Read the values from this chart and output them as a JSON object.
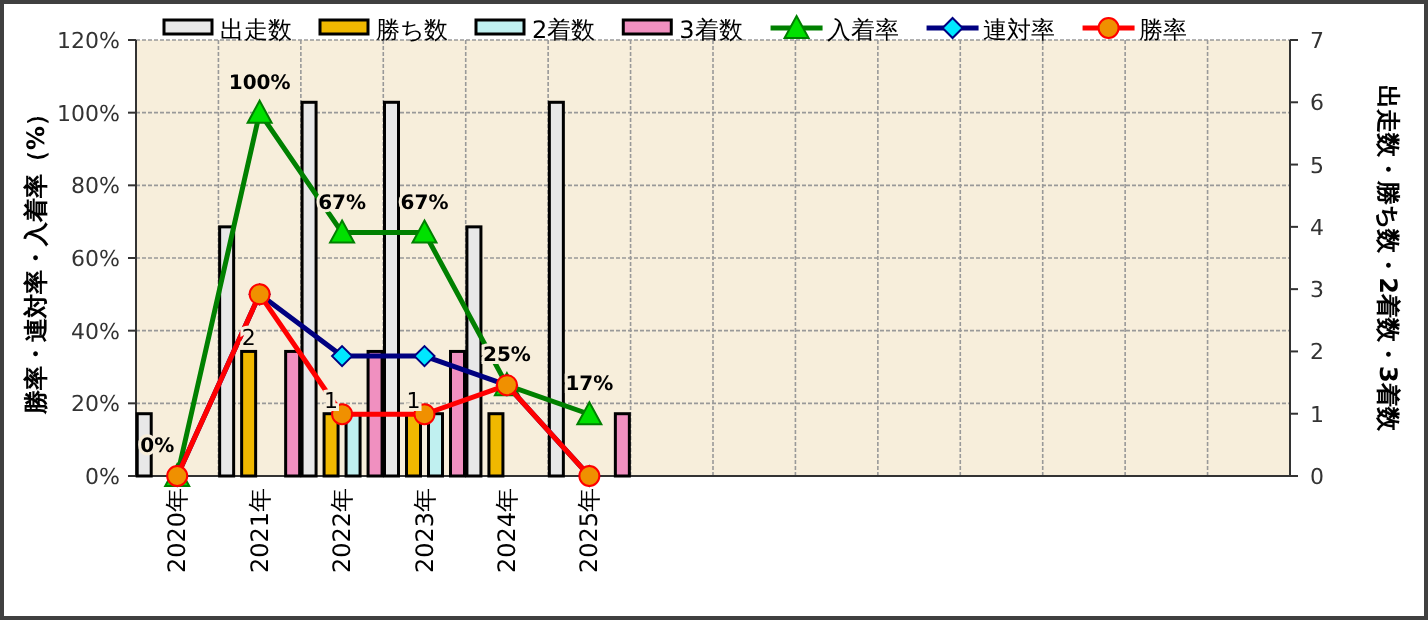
{
  "chart_data": {
    "type": "bar",
    "ylabel": "勝率・連対率・入着率（%）",
    "y2label": "出走数・勝ち数・2着数・3着数",
    "categories": [
      "2020年",
      "2021年",
      "2022年",
      "2023年",
      "2024年",
      "2025年",
      null,
      null,
      null,
      null,
      null,
      null,
      null,
      null
    ],
    "series": [
      {
        "name": "出走数",
        "axis": "y2",
        "color": "#e8e8e8",
        "values": [
          1,
          4,
          6,
          6,
          4,
          6,
          null,
          null,
          null,
          null,
          null,
          null,
          null,
          null
        ]
      },
      {
        "name": "勝ち数",
        "axis": "y2",
        "color": "#f0b800",
        "values": [
          0,
          2,
          1,
          1,
          1,
          0,
          null,
          null,
          null,
          null,
          null,
          null,
          null,
          null
        ],
        "value_labels": [
          null,
          "2",
          "1",
          "1",
          null,
          null,
          null,
          null,
          null,
          null,
          null,
          null,
          null,
          null
        ]
      },
      {
        "name": "2着数",
        "axis": "y2",
        "color": "#c0f0f0",
        "values": [
          0,
          0,
          1,
          1,
          0,
          0,
          null,
          null,
          null,
          null,
          null,
          null,
          null,
          null
        ]
      },
      {
        "name": "3着数",
        "axis": "y2",
        "color": "#f090c0",
        "values": [
          0,
          2,
          2,
          2,
          0,
          1,
          null,
          null,
          null,
          null,
          null,
          null,
          null,
          null
        ]
      },
      {
        "name": "入着率",
        "type": "line",
        "marker": "triangle",
        "color": "#008000",
        "values": [
          0,
          100,
          67,
          67,
          25,
          17,
          null,
          null,
          null,
          null,
          null,
          null,
          null,
          null
        ],
        "value_labels": [
          "0%",
          "100%",
          "67%",
          "67%",
          "25%",
          "17%",
          null,
          null,
          null,
          null,
          null,
          null,
          null,
          null
        ]
      },
      {
        "name": "連対率",
        "type": "line",
        "marker": "diamond",
        "color": "#000080",
        "values": [
          0,
          50,
          33,
          33,
          25,
          0,
          null,
          null,
          null,
          null,
          null,
          null,
          null,
          null
        ]
      },
      {
        "name": "勝率",
        "type": "line",
        "marker": "circle",
        "color": "#ff0000",
        "values": [
          0,
          50,
          17,
          17,
          25,
          0,
          null,
          null,
          null,
          null,
          null,
          null,
          null,
          null
        ]
      }
    ],
    "ylim": [
      0,
      120
    ],
    "yticks": [
      {
        "value": 0,
        "label": "0%"
      },
      {
        "value": 20,
        "label": "20%"
      },
      {
        "value": 40,
        "label": "40%"
      },
      {
        "value": 60,
        "label": "60%"
      },
      {
        "value": 80,
        "label": "80%"
      },
      {
        "value": 100,
        "label": "100%"
      },
      {
        "value": 120,
        "label": "120%"
      }
    ],
    "y2lim": [
      0,
      7
    ],
    "y2ticks": [
      0,
      1,
      2,
      3,
      4,
      5,
      6,
      7
    ],
    "grid": true,
    "legend": "top"
  }
}
